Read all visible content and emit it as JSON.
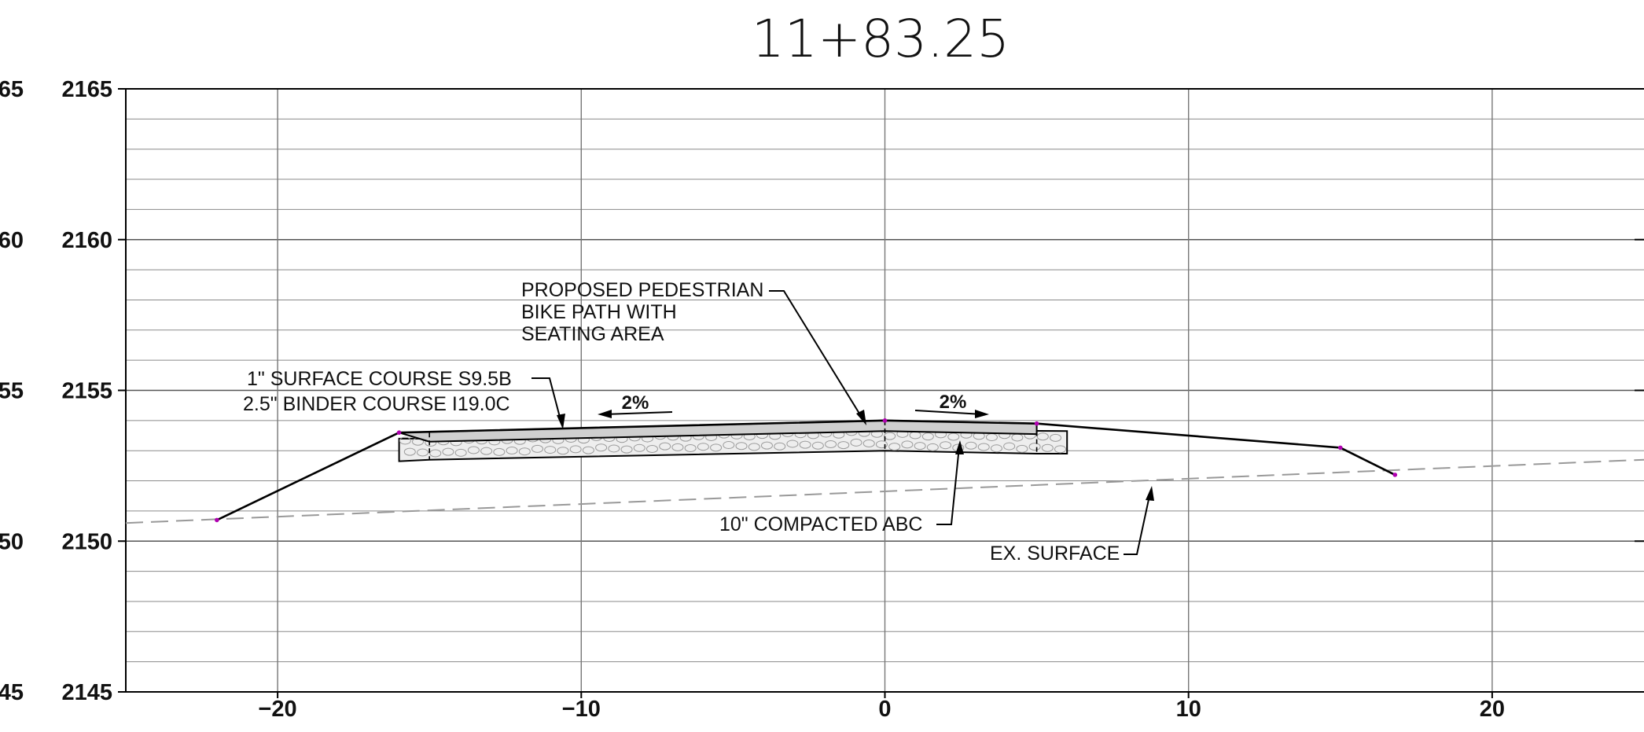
{
  "title": "11+83.25",
  "grid": {
    "x_range": [
      -25,
      25
    ],
    "y_range": [
      2145,
      2165
    ],
    "y_ticks_major": [
      2145,
      2150,
      2155,
      2160,
      2165
    ],
    "y_minor_step": 1,
    "x_ticks_major": [
      -20,
      -10,
      0,
      10,
      20
    ],
    "x_tick_labels": [
      "−20",
      "−10",
      "0",
      "10",
      "20"
    ],
    "y_tick_labels": [
      "2145",
      "2150",
      "2155",
      "2160",
      "2165"
    ],
    "left_edge_labels": [
      "45",
      "50",
      "55",
      "60",
      "65"
    ],
    "x_vertical_lines": [
      -20,
      -10,
      0,
      10,
      20
    ]
  },
  "proposed_profile": [
    [
      -22,
      2150.7
    ],
    [
      -16,
      2153.6
    ],
    [
      0,
      2154.0
    ],
    [
      5,
      2153.9
    ],
    [
      15,
      2153.1
    ],
    [
      16.8,
      2152.2
    ]
  ],
  "pavement_top": [
    [
      -16,
      2153.6
    ],
    [
      0,
      2154.0
    ],
    [
      5,
      2153.9
    ]
  ],
  "pavement_bottom": [
    [
      -15,
      2153.3
    ],
    [
      0,
      2153.65
    ],
    [
      5,
      2153.55
    ]
  ],
  "abc_layer": {
    "top": [
      [
        -16,
        2153.4
      ],
      [
        -15,
        2153.4
      ],
      [
        0,
        2153.7
      ],
      [
        6,
        2153.65
      ]
    ],
    "bottom": [
      [
        -16,
        2152.65
      ],
      [
        -15,
        2152.7
      ],
      [
        0,
        2153.0
      ],
      [
        5,
        2152.9
      ],
      [
        6,
        2152.9
      ]
    ]
  },
  "existing_surface": [
    [
      -25,
      2150.6
    ],
    [
      25,
      2152.7
    ]
  ],
  "points": [
    [
      -22,
      2150.7
    ],
    [
      -16,
      2153.6
    ],
    [
      0,
      2154.0
    ],
    [
      5,
      2153.9
    ],
    [
      15,
      2153.1
    ],
    [
      16.8,
      2152.2
    ]
  ],
  "labels": {
    "proposed_path": [
      "PROPOSED PEDESTRIAN",
      "BIKE PATH WITH",
      "SEATING AREA"
    ],
    "surface_course": [
      "1\" SURFACE COURSE S9.5B",
      "2.5\" BINDER COURSE I19.0C"
    ],
    "abc": "10\" COMPACTED ABC",
    "existing": "EX. SURFACE",
    "slope_left": "2%",
    "slope_right": "2%"
  },
  "colors": {
    "line": "#000000",
    "grid": "#808080",
    "existing": "#999999",
    "point": "#b000b0",
    "abc_fill": "#eeeeee"
  }
}
